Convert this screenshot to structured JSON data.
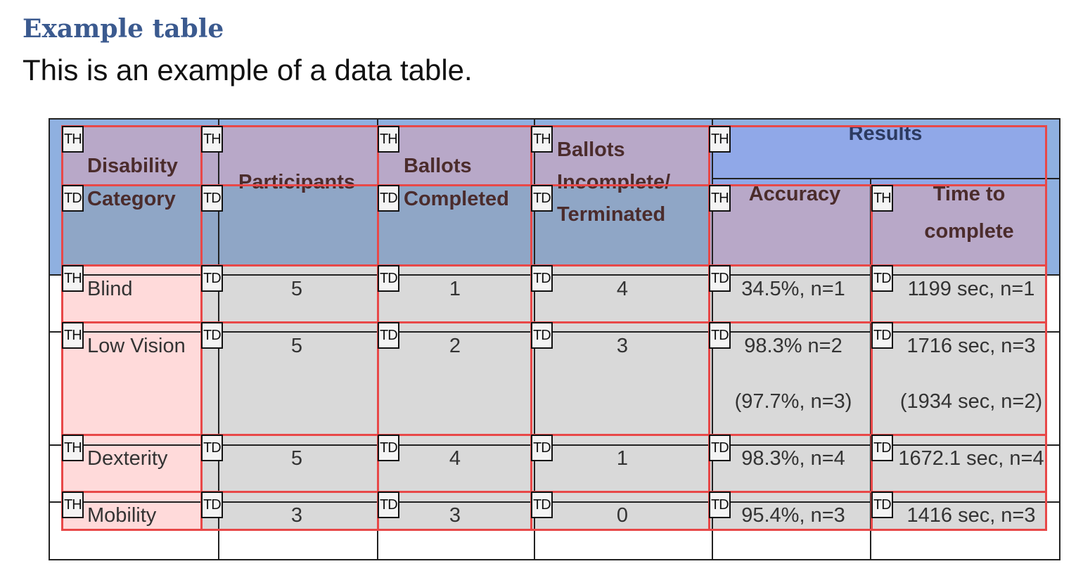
{
  "document": {
    "title": "Example table",
    "subtitle": "This is an example of a data table."
  },
  "table": {
    "headers": {
      "disability_category": [
        "Disability",
        "Category"
      ],
      "participants": "Participants",
      "ballots_completed": [
        "Ballots",
        "Completed"
      ],
      "ballots_incomplete": [
        "Ballots",
        "Incomplete/",
        "Terminated"
      ],
      "results": "Results",
      "accuracy": "Accuracy",
      "time_to_complete": [
        "Time to",
        "complete"
      ]
    },
    "rows": [
      {
        "category": "Blind",
        "participants": "5",
        "completed": "1",
        "incomplete": "4",
        "accuracy": [
          "34.5%, n=1"
        ],
        "time": [
          "1199 sec, n=1"
        ]
      },
      {
        "category": "Low Vision",
        "participants": "5",
        "completed": "2",
        "incomplete": "3",
        "accuracy": [
          "98.3% n=2",
          "(97.7%, n=3)"
        ],
        "time": [
          "1716 sec, n=3",
          "(1934 sec, n=2)"
        ]
      },
      {
        "category": "Dexterity",
        "participants": "5",
        "completed": "4",
        "incomplete": "1",
        "accuracy": [
          "98.3%, n=4"
        ],
        "time": [
          "1672.1 sec, n=4"
        ]
      },
      {
        "category": "Mobility",
        "participants": "3",
        "completed": "3",
        "incomplete": "0",
        "accuracy": [
          "95.4%, n=3"
        ],
        "time": [
          "1416 sec, n=3"
        ]
      }
    ]
  },
  "tag_overlay": {
    "colors": {
      "border": "#e84848",
      "th_header": "#b8a8c8",
      "td_header": "#8fa6c6",
      "results": "#90a8e8",
      "row_header": "#ffdada",
      "data_cell": "#d9d9d9"
    },
    "rows": [
      [
        "TH",
        "TH",
        "TH",
        "TH",
        "TH"
      ],
      [
        "TD",
        "TD",
        "TD",
        "TD",
        "TH",
        "TH"
      ],
      [
        "TH",
        "TD",
        "TD",
        "TD",
        "TD",
        "TD"
      ],
      [
        "TH",
        "TD",
        "TD",
        "TD",
        "TD",
        "TD"
      ],
      [
        "TH",
        "TD",
        "TD",
        "TD",
        "TD",
        "TD"
      ],
      [
        "TH",
        "TD",
        "TD",
        "TD",
        "TD",
        "TD"
      ]
    ]
  }
}
